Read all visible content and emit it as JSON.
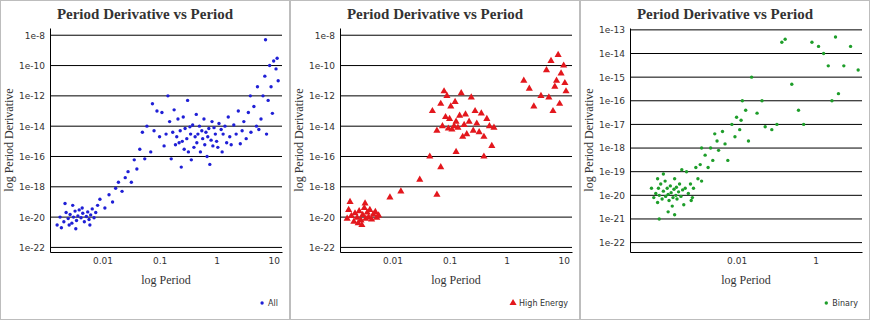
{
  "chart_data": [
    {
      "type": "scatter",
      "title": "Period Derivative vs Period",
      "x_label": "log Period",
      "y_label": "log Period Derivative",
      "log": true,
      "grid": true,
      "legend": "lower right",
      "xlim": [
        0.0012,
        14
      ],
      "ylim": [
        5e-23,
        3e-08
      ],
      "xticks": [
        0.01,
        0.1,
        1,
        10
      ],
      "yticks": [
        {
          "value": 1e-08,
          "label": "1e-8"
        },
        {
          "value": 1e-10,
          "label": "1e-10"
        },
        {
          "value": 1e-12,
          "label": "1e-12"
        },
        {
          "value": 1e-14,
          "label": "1e-14"
        },
        {
          "value": 1e-16,
          "label": "1e-16"
        },
        {
          "value": 1e-18,
          "label": "1e-18"
        },
        {
          "value": 1e-20,
          "label": "1e-20"
        },
        {
          "value": 1e-22,
          "label": "1e-22"
        }
      ],
      "series": [
        {
          "name": "All",
          "color": "#1f1fd6",
          "marker": "circle",
          "x": [
            0.0016,
            0.0018,
            0.0021,
            0.0023,
            0.0025,
            0.0027,
            0.0029,
            0.0031,
            0.0033,
            0.0035,
            0.0037,
            0.0039,
            0.0042,
            0.0045,
            0.0048,
            0.0052,
            0.0055,
            0.0058,
            0.0062,
            0.0066,
            0.0071,
            0.0076,
            0.0082,
            0.0019,
            0.0026,
            0.0034,
            0.0044,
            0.0022,
            0.003,
            0.006,
            0.009,
            0.011,
            0.013,
            0.015,
            0.017,
            0.019,
            0.022,
            0.025,
            0.028,
            0.032,
            0.036,
            0.04,
            0.045,
            0.05,
            0.055,
            0.06,
            0.07,
            0.075,
            0.08,
            0.09,
            0.1,
            0.11,
            0.12,
            0.13,
            0.14,
            0.15,
            0.16,
            0.17,
            0.18,
            0.19,
            0.2,
            0.21,
            0.22,
            0.23,
            0.24,
            0.25,
            0.26,
            0.27,
            0.28,
            0.3,
            0.31,
            0.32,
            0.34,
            0.35,
            0.36,
            0.38,
            0.4,
            0.42,
            0.44,
            0.45,
            0.47,
            0.5,
            0.52,
            0.55,
            0.57,
            0.6,
            0.62,
            0.65,
            0.68,
            0.7,
            0.73,
            0.76,
            0.8,
            0.83,
            0.86,
            0.9,
            0.95,
            1.0,
            1.05,
            1.1,
            1.2,
            1.25,
            1.3,
            1.4,
            1.5,
            1.6,
            1.7,
            1.8,
            2.0,
            2.2,
            2.4,
            2.6,
            2.8,
            3.0,
            3.3,
            3.6,
            4.0,
            4.5,
            5.0,
            5.5,
            6.0,
            6.5,
            7.0,
            7.5,
            8.0,
            8.5,
            9.0,
            10.0,
            11.0,
            12.0,
            7.2,
            11.5,
            9.5,
            5.2,
            3.9
          ],
          "values": [
            3e-21,
            1e-20,
            5e-21,
            2e-20,
            8e-21,
            1.5e-20,
            4e-21,
            1e-20,
            2.5e-20,
            6e-21,
            1.2e-20,
            3e-20,
            9e-21,
            1.8e-20,
            5e-21,
            1.1e-20,
            2.2e-20,
            7e-21,
            1.4e-20,
            3.5e-20,
            9e-21,
            2e-20,
            6e-20,
            2e-21,
            3e-21,
            1.7e-21,
            4e-20,
            8e-20,
            6e-20,
            3e-21,
            1.5e-19,
            4e-20,
            3e-19,
            1e-19,
            8e-19,
            2e-18,
            5e-19,
            4e-18,
            1e-17,
            2e-18,
            6e-17,
            1.5e-17,
            3e-16,
            4e-15,
            7e-17,
            1e-14,
            2e-16,
            3e-13,
            5e-15,
            1e-13,
            2e-15,
            8e-14,
            5e-16,
            3e-15,
            1e-12,
            2e-14,
            7e-17,
            4e-15,
            1.2e-13,
            6e-16,
            2e-15,
            3e-14,
            8e-16,
            5e-15,
            2e-17,
            1e-15,
            4e-14,
            3e-16,
            7e-15,
            1.5e-15,
            5e-13,
            2e-16,
            9e-15,
            3e-15,
            6e-17,
            1.2e-14,
            4e-16,
            2e-15,
            6e-14,
            8e-16,
            3e-15,
            1e-14,
            2e-16,
            5e-15,
            1.5e-15,
            3e-14,
            6e-16,
            4e-15,
            1e-16,
            2e-15,
            7e-15,
            3e-17,
            1.2e-15,
            2e-14,
            5e-16,
            8e-15,
            3e-15,
            1e-15,
            4e-16,
            1.5e-14,
            6e-15,
            2e-16,
            3e-15,
            1e-14,
            8e-16,
            4e-14,
            2e-15,
            6e-16,
            1.2e-14,
            3e-15,
            1e-13,
            7e-16,
            5e-15,
            2e-14,
            1.5e-15,
            8e-14,
            4e-15,
            2e-13,
            1e-14,
            6e-15,
            3e-14,
            1e-12,
            2e-11,
            3e-15,
            5e-13,
            1e-10,
            4e-12,
            2e-10,
            6e-11,
            1e-11,
            5e-09,
            3e-10,
            7e-14,
            4e-12,
            1e-12
          ]
        }
      ]
    },
    {
      "type": "scatter",
      "title": "Period Derivative vs Period",
      "x_label": "log Period",
      "y_label": "log Period Derivative",
      "log": true,
      "grid": true,
      "legend": "lower right",
      "xlim": [
        0.0012,
        14
      ],
      "ylim": [
        5e-23,
        3e-08
      ],
      "xticks": [
        0.01,
        0.1,
        1,
        10
      ],
      "yticks": [
        {
          "value": 1e-08,
          "label": "1e-8"
        },
        {
          "value": 1e-10,
          "label": "1e-10"
        },
        {
          "value": 1e-12,
          "label": "1e-12"
        },
        {
          "value": 1e-14,
          "label": "1e-14"
        },
        {
          "value": 1e-16,
          "label": "1e-16"
        },
        {
          "value": 1e-18,
          "label": "1e-18"
        },
        {
          "value": 1e-20,
          "label": "1e-20"
        },
        {
          "value": 1e-22,
          "label": "1e-22"
        }
      ],
      "series": [
        {
          "name": "High Energy",
          "color": "#e3171d",
          "marker": "triangle",
          "x": [
            0.0016,
            0.0017,
            0.0019,
            0.0021,
            0.0022,
            0.0024,
            0.0026,
            0.0028,
            0.003,
            0.0032,
            0.0034,
            0.0036,
            0.0038,
            0.004,
            0.0043,
            0.0046,
            0.005,
            0.0053,
            0.0057,
            0.0025,
            0.0018,
            0.0033,
            0.0029,
            0.009,
            0.014,
            0.03,
            0.045,
            0.06,
            0.07,
            0.05,
            0.06,
            0.07,
            0.075,
            0.08,
            0.085,
            0.09,
            0.095,
            0.1,
            0.105,
            0.11,
            0.12,
            0.125,
            0.13,
            0.14,
            0.15,
            0.16,
            0.17,
            0.18,
            0.19,
            0.2,
            0.22,
            0.24,
            0.26,
            0.28,
            0.3,
            0.33,
            0.36,
            0.4,
            0.45,
            0.5,
            0.55,
            0.6,
            0.13,
            0.4,
            2.0,
            2.5,
            3.0,
            4.0,
            5.0,
            5.5,
            6.0,
            6.5,
            7.0,
            7.5,
            8.0,
            9.0,
            10.0,
            11.0,
            8.5,
            10.5
          ],
          "values": [
            8e-21,
            3e-20,
            1.2e-20,
            5e-21,
            1.8e-20,
            9e-21,
            2.5e-20,
            6e-21,
            1.4e-20,
            4e-20,
            8e-21,
            2e-20,
            1e-20,
            3e-20,
            7e-21,
            1.5e-20,
            2.2e-20,
            9e-21,
            1.3e-20,
            4e-21,
            1e-19,
            8e-20,
            3e-21,
            2e-19,
            5e-19,
            3e-18,
            1e-16,
            3e-19,
            2e-17,
            1e-13,
            5e-15,
            3e-13,
            1e-14,
            2e-12,
            4e-14,
            1e-12,
            7e-15,
            3e-14,
            2e-13,
            6e-15,
            1e-14,
            4e-13,
            2e-14,
            8e-15,
            5e-14,
            1.5e-12,
            2e-15,
            1.2e-14,
            6e-14,
            3e-15,
            2e-14,
            8e-13,
            5e-15,
            1e-13,
            1.5e-14,
            4e-15,
            7e-14,
            2e-15,
            3e-14,
            1e-14,
            5e-16,
            8e-15,
            2e-16,
            1e-16,
            1e-11,
            3e-12,
            2e-13,
            1e-12,
            5e-11,
            8e-13,
            2e-10,
            1e-13,
            4e-12,
            1e-11,
            5e-10,
            3e-11,
            1e-10,
            2e-12,
            3e-13,
            7e-12
          ]
        }
      ]
    },
    {
      "type": "scatter",
      "title": "Period Derivative vs Period",
      "x_label": "log Period",
      "y_label": "log Period Derivative",
      "log": true,
      "grid": true,
      "legend": "lower right",
      "xlim": [
        2e-05,
        15
      ],
      "ylim": [
        4e-23,
        1.2e-13
      ],
      "xticks": [
        0.01,
        1
      ],
      "yticks": [
        {
          "value": 1e-13,
          "label": "1e-13"
        },
        {
          "value": 1e-14,
          "label": "1e-14"
        },
        {
          "value": 1e-15,
          "label": "1e-15"
        },
        {
          "value": 1e-16,
          "label": "1e-16"
        },
        {
          "value": 1e-17,
          "label": "1e-17"
        },
        {
          "value": 1e-18,
          "label": "1e-18"
        },
        {
          "value": 1e-19,
          "label": "1e-19"
        },
        {
          "value": 1e-20,
          "label": "1e-20"
        },
        {
          "value": 1e-21,
          "label": "1e-21"
        },
        {
          "value": 1e-22,
          "label": "1e-22"
        }
      ],
      "series": [
        {
          "name": "Binary",
          "color": "#1e9e2a",
          "marker": "circle",
          "x": [
            7e-05,
            8e-05,
            9e-05,
            0.0001,
            0.000105,
            0.00011,
            0.00012,
            0.00013,
            0.00014,
            0.000155,
            0.00016,
            0.000175,
            0.000185,
            0.000195,
            0.00021,
            0.00022,
            0.000235,
            0.000245,
            0.00026,
            0.00027,
            0.00029,
            0.0003,
            0.00031,
            0.00034,
            0.00036,
            0.00039,
            0.00043,
            0.00046,
            0.0005,
            0.00054,
            0.0006,
            0.00068,
            0.00076,
            0.00081,
            0.00093,
            0.00105,
            0.0012,
            0.0013,
            0.00011,
            0.000185,
            0.00027,
            0.0001,
            0.00014,
            0.00041,
            0.00071,
            0.0016,
            0.0019,
            0.0022,
            0.0025,
            0.0032,
            0.0035,
            0.0044,
            0.0051,
            0.006,
            0.0076,
            0.0091,
            0.01,
            0.012,
            0.014,
            0.017,
            0.02,
            0.024,
            0.033,
            0.044,
            0.053,
            0.078,
            0.105,
            0.14,
            0.17,
            0.25,
            0.37,
            0.5,
            0.81,
            1.19,
            1.6,
            2.1,
            2.6,
            3.8,
            5.2,
            7.7,
            3.2,
            12,
            0.013,
            0.0028,
            0.0013
          ],
          "values": [
            2e-20,
            8e-21,
            1.2e-20,
            5e-21,
            2e-20,
            1e-20,
            3e-20,
            7e-21,
            1.5e-20,
            4e-20,
            9e-21,
            2e-20,
            1.1e-20,
            6e-21,
            2.5e-20,
            1.3e-20,
            3.5e-21,
            8e-21,
            1.8e-20,
            5e-20,
            1e-20,
            2.2e-20,
            7e-21,
            1.4e-20,
            3e-20,
            9e-21,
            1.7e-20,
            4e-21,
            2e-20,
            1e-19,
            1.2e-20,
            3e-20,
            8e-21,
            2e-20,
            1.5e-19,
            5e-20,
            2e-19,
            4e-20,
            1e-21,
            2e-21,
            1.5e-21,
            5e-20,
            8e-20,
            1.2e-19,
            6e-21,
            5e-19,
            1.5e-19,
            1e-18,
            3e-19,
            2e-18,
            8e-19,
            5e-18,
            1.5e-18,
            3e-19,
            1e-17,
            3e-18,
            2e-17,
            6e-18,
            1e-16,
            4e-17,
            2e-18,
            1e-15,
            3e-17,
            1e-16,
            8e-18,
            6e-18,
            1e-17,
            3e-14,
            4e-14,
            5e-16,
            4e-17,
            1e-17,
            3e-14,
            2e-14,
            1e-14,
            3e-15,
            1e-16,
            2e-16,
            3e-15,
            2e-14,
            5e-14,
            2e-15,
            1.5e-17,
            4e-18,
            1e-18
          ]
        }
      ]
    }
  ]
}
